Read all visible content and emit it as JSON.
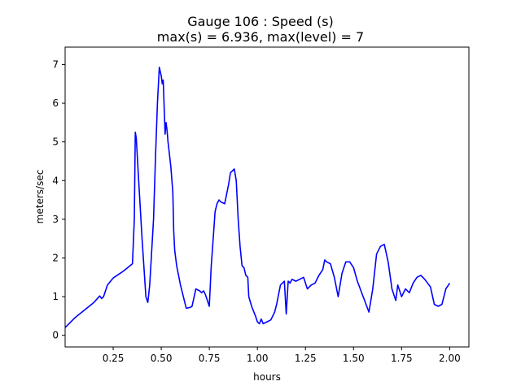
{
  "chart_data": {
    "type": "line",
    "title": "Gauge 106 : Speed (s)",
    "subtitle": "max(s) =   6.936,    max(level) = 7",
    "xlabel": "hours",
    "ylabel": "meters/sec",
    "xlim": [
      0.0,
      2.1
    ],
    "ylim": [
      -0.3,
      7.45
    ],
    "xticks": [
      0.25,
      0.5,
      0.75,
      1.0,
      1.25,
      1.5,
      1.75,
      2.0
    ],
    "xtick_labels": [
      "0.25",
      "0.50",
      "0.75",
      "1.00",
      "1.25",
      "1.50",
      "1.75",
      "2.00"
    ],
    "yticks": [
      0,
      1,
      2,
      3,
      4,
      5,
      6,
      7
    ],
    "ytick_labels": [
      "0",
      "1",
      "2",
      "3",
      "4",
      "5",
      "6",
      "7"
    ],
    "grid": false,
    "series": [
      {
        "color": "#0000ff",
        "x": [
          0.0,
          0.05,
          0.1,
          0.15,
          0.18,
          0.19,
          0.2,
          0.22,
          0.25,
          0.3,
          0.35,
          0.36,
          0.365,
          0.37,
          0.38,
          0.4,
          0.42,
          0.43,
          0.44,
          0.46,
          0.47,
          0.48,
          0.49,
          0.5,
          0.505,
          0.51,
          0.52,
          0.525,
          0.53,
          0.535,
          0.54,
          0.55,
          0.56,
          0.565,
          0.57,
          0.58,
          0.6,
          0.63,
          0.65,
          0.66,
          0.68,
          0.7,
          0.71,
          0.72,
          0.73,
          0.75,
          0.76,
          0.77,
          0.78,
          0.79,
          0.8,
          0.81,
          0.83,
          0.85,
          0.86,
          0.88,
          0.89,
          0.9,
          0.91,
          0.92,
          0.93,
          0.94,
          0.95,
          0.955,
          0.97,
          0.99,
          1.0,
          1.01,
          1.02,
          1.03,
          1.05,
          1.07,
          1.09,
          1.1,
          1.12,
          1.14,
          1.15,
          1.16,
          1.17,
          1.18,
          1.2,
          1.22,
          1.24,
          1.26,
          1.28,
          1.3,
          1.32,
          1.34,
          1.35,
          1.36,
          1.38,
          1.4,
          1.42,
          1.44,
          1.46,
          1.48,
          1.5,
          1.52,
          1.55,
          1.58,
          1.6,
          1.62,
          1.64,
          1.66,
          1.68,
          1.7,
          1.72,
          1.73,
          1.75,
          1.77,
          1.79,
          1.81,
          1.83,
          1.85,
          1.87,
          1.9,
          1.92,
          1.94,
          1.96,
          1.98,
          2.0
        ],
        "y": [
          0.2,
          0.45,
          0.65,
          0.85,
          1.02,
          0.95,
          1.0,
          1.3,
          1.48,
          1.65,
          1.85,
          3.0,
          5.25,
          5.1,
          4.2,
          2.5,
          1.0,
          0.85,
          1.3,
          3.0,
          4.6,
          6.0,
          6.93,
          6.7,
          6.5,
          6.6,
          5.2,
          5.5,
          5.3,
          5.0,
          4.8,
          4.35,
          3.7,
          2.7,
          2.2,
          1.8,
          1.3,
          0.7,
          0.72,
          0.75,
          1.2,
          1.15,
          1.1,
          1.15,
          1.05,
          0.75,
          1.8,
          2.5,
          3.2,
          3.4,
          3.5,
          3.45,
          3.4,
          3.9,
          4.2,
          4.3,
          4.0,
          3.0,
          2.3,
          1.8,
          1.75,
          1.55,
          1.5,
          1.0,
          0.75,
          0.5,
          0.35,
          0.3,
          0.42,
          0.3,
          0.35,
          0.4,
          0.6,
          0.8,
          1.3,
          1.4,
          0.55,
          1.4,
          1.35,
          1.45,
          1.4,
          1.45,
          1.5,
          1.2,
          1.3,
          1.35,
          1.55,
          1.7,
          1.95,
          1.9,
          1.85,
          1.5,
          1.0,
          1.6,
          1.9,
          1.9,
          1.75,
          1.4,
          1.0,
          0.6,
          1.2,
          2.1,
          2.3,
          2.35,
          1.9,
          1.2,
          0.9,
          1.3,
          1.0,
          1.2,
          1.1,
          1.35,
          1.5,
          1.55,
          1.45,
          1.25,
          0.8,
          0.75,
          0.8,
          1.2,
          1.35
        ]
      }
    ]
  }
}
